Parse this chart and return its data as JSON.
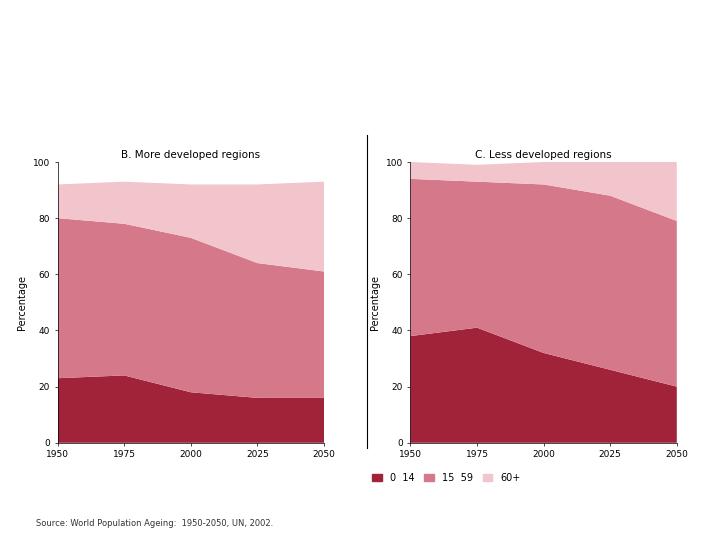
{
  "title_B": "B. More developed regions",
  "title_C": "C. Less developed regions",
  "ylabel": "Percentage",
  "source": "Source: World Population Ageing:  1950-2050, UN, 2002.",
  "years": [
    1950,
    1975,
    2000,
    2025,
    2050
  ],
  "B_0_14": [
    23,
    24,
    18,
    16,
    16
  ],
  "B_15_59": [
    57,
    54,
    55,
    48,
    45
  ],
  "B_60plus": [
    12,
    15,
    19,
    28,
    32
  ],
  "C_0_14": [
    38,
    41,
    32,
    26,
    20
  ],
  "C_15_59": [
    56,
    52,
    60,
    62,
    59
  ],
  "C_60plus": [
    6,
    6,
    8,
    12,
    22
  ],
  "color_0_14": "#a0233a",
  "color_15_59": "#d4788a",
  "color_60plus": "#f2c4cc",
  "legend_labels": [
    "0  14",
    "15  59",
    "60+"
  ],
  "ylim": [
    0,
    100
  ],
  "yticks": [
    0,
    20,
    40,
    60,
    80,
    100
  ],
  "xticks": [
    1950,
    1975,
    2000,
    2025,
    2050
  ],
  "fig_width": 7.2,
  "fig_height": 5.4,
  "fig_dpi": 100
}
